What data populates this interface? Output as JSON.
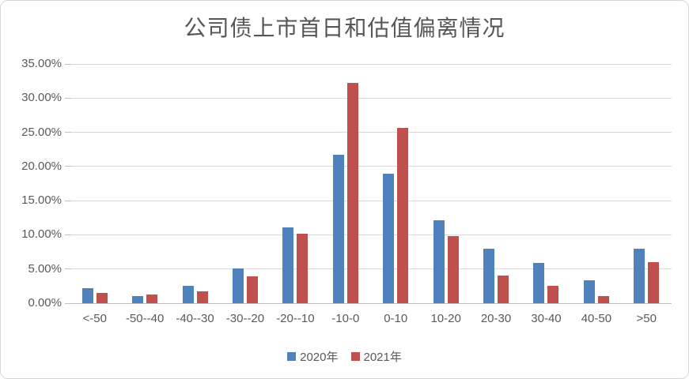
{
  "chart_data": {
    "type": "bar",
    "title": "公司债上市首日和估值偏离情况",
    "categories": [
      "<-50",
      "-50--40",
      "-40--30",
      "-30--20",
      "-20--10",
      "-10-0",
      "0-10",
      "10-20",
      "20-30",
      "30-40",
      "40-50",
      ">50"
    ],
    "series": [
      {
        "name": "2020年",
        "color": "#4F81BD",
        "values": [
          2.2,
          1.0,
          2.6,
          5.1,
          11.1,
          21.7,
          19.0,
          12.1,
          8.0,
          5.9,
          3.4,
          8.0
        ]
      },
      {
        "name": "2021年",
        "color": "#C0504D",
        "values": [
          1.5,
          1.3,
          1.7,
          3.9,
          10.2,
          32.2,
          25.7,
          9.8,
          4.1,
          2.6,
          1.0,
          6.0
        ]
      }
    ],
    "xlabel": "",
    "ylabel": "",
    "ylim": [
      0,
      35
    ],
    "ytick_step": 5,
    "ytick_labels": [
      "0.00%",
      "5.00%",
      "10.00%",
      "15.00%",
      "20.00%",
      "25.00%",
      "30.00%",
      "35.00%"
    ],
    "grid": true,
    "legend_position": "bottom"
  },
  "colors": {
    "background": "#FFFFFF",
    "border": "#D7D7D7",
    "gridline": "#D9D9D9",
    "axis": "#BFBFBF",
    "text": "#595959",
    "series_2020": "#4F81BD",
    "series_2021": "#C0504D"
  }
}
